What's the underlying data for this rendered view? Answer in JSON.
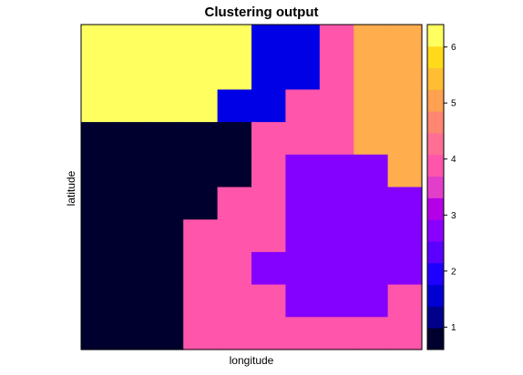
{
  "chart_data": {
    "type": "heatmap",
    "title": "Clustering output",
    "xlabel": "longitude",
    "ylabel": "latitude",
    "grid": false,
    "legend": "right",
    "colorbar": {
      "range": [
        0.6,
        6.4
      ],
      "ticks": [
        "1",
        "2",
        "3",
        "4",
        "5",
        "6"
      ],
      "colors": [
        "#00002E",
        "#00008A",
        "#0000D3",
        "#1F00FF",
        "#5B00FF",
        "#8A00FF",
        "#B300E6",
        "#E23EC9",
        "#FF55AA",
        "#FF6E95",
        "#FF8671",
        "#FFA150",
        "#FFBD33",
        "#FFDA1B",
        "#FFFF60"
      ]
    },
    "cluster_colors": {
      "1": "#00002E",
      "2": "#0000E6",
      "3": "#8400FF",
      "4": "#FF55AA",
      "5": "#FFAD4D",
      "6": "#FFFF60"
    },
    "rows": 10,
    "cols": 10,
    "grid_values": [
      [
        6,
        6,
        6,
        6,
        6,
        2,
        2,
        4,
        5,
        5
      ],
      [
        6,
        6,
        6,
        6,
        6,
        2,
        2,
        4,
        5,
        5
      ],
      [
        6,
        6,
        6,
        6,
        2,
        2,
        4,
        4,
        5,
        5
      ],
      [
        1,
        1,
        1,
        1,
        1,
        4,
        4,
        4,
        5,
        5
      ],
      [
        1,
        1,
        1,
        1,
        1,
        4,
        3,
        3,
        3,
        5
      ],
      [
        1,
        1,
        1,
        1,
        4,
        4,
        3,
        3,
        3,
        3
      ],
      [
        1,
        1,
        1,
        4,
        4,
        4,
        3,
        3,
        3,
        3
      ],
      [
        1,
        1,
        1,
        4,
        4,
        3,
        3,
        3,
        3,
        3
      ],
      [
        1,
        1,
        1,
        4,
        4,
        4,
        3,
        3,
        3,
        4
      ],
      [
        1,
        1,
        1,
        4,
        4,
        4,
        4,
        4,
        4,
        4
      ]
    ]
  }
}
